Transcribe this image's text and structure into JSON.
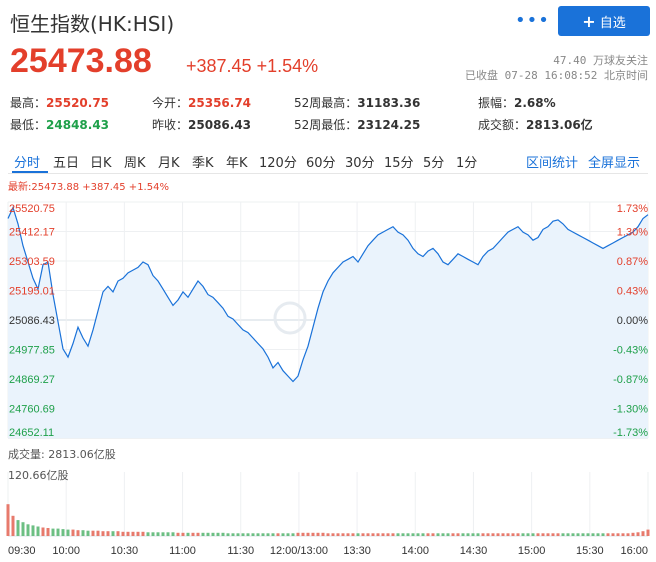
{
  "header": {
    "title": "恒生指数(HK:HSI)",
    "more_icon": "more-dots-icon",
    "add_button_label": "自选",
    "add_icon": "plus-icon"
  },
  "quote": {
    "price": "25473.88",
    "change": "+387.45 +1.54%",
    "followers": "47.40 万球友关注",
    "status": "已收盘 07-28 16:08:52 北京时间"
  },
  "stats": {
    "high_label": "最高：",
    "high_value": "25520.75",
    "low_label": "最低：",
    "low_value": "24848.43",
    "open_label": "今开：",
    "open_value": "25356.74",
    "prev_close_label": "昨收：",
    "prev_close_value": "25086.43",
    "w52_high_label": "52周最高：",
    "w52_high_value": "31183.36",
    "w52_low_label": "52周最低：",
    "w52_low_value": "23124.25",
    "amplitude_label": "振幅：",
    "amplitude_value": "2.68%",
    "turnover_label": "成交额：",
    "turnover_value": "2813.06亿"
  },
  "tabs": [
    "分时",
    "五日",
    "日K",
    "周K",
    "月K",
    "季K",
    "年K",
    "120分",
    "60分",
    "30分",
    "15分",
    "5分",
    "1分"
  ],
  "tab_links": {
    "range_stats": "区间统计",
    "fullscreen": "全屏显示"
  },
  "latest_line": "最新:25473.88 +387.45 +1.54%",
  "volume": {
    "label": "成交量: 2813.06亿股",
    "max_label": "120.66亿股"
  },
  "watermark": "雪球",
  "colors": {
    "up": "#e33f2b",
    "down": "#1fa04a",
    "line": "#1a72d9",
    "accent": "#1a72d9"
  },
  "chart_data": {
    "type": "area",
    "prev_close": 25086.43,
    "ylim": [
      24652.11,
      25520.75
    ],
    "y_ticks_left": [
      "25520.75",
      "25412.17",
      "25303.59",
      "25195.01",
      "25086.43",
      "24977.85",
      "24869.27",
      "24760.69",
      "24652.11"
    ],
    "y_ticks_right": [
      "1.73%",
      "1.30%",
      "0.87%",
      "0.43%",
      "0.00%",
      "-0.43%",
      "-0.87%",
      "-1.30%",
      "-1.73%"
    ],
    "x_ticks": [
      "09:30",
      "10:00",
      "10:30",
      "11:00",
      "11:30",
      "12:00/13:00",
      "13:30",
      "14:00",
      "14:30",
      "15:00",
      "15:30",
      "16:00"
    ],
    "series": [
      {
        "values": [
          25460,
          25500,
          25440,
          25360,
          25300,
          25240,
          25200,
          25290,
          25300,
          25180,
          25080,
          24980,
          24950,
          25000,
          25060,
          25020,
          24990,
          25050,
          25120,
          25190,
          25210,
          25190,
          25230,
          25240,
          25260,
          25270,
          25280,
          25300,
          25290,
          25250,
          25230,
          25200,
          25170,
          25140,
          25160,
          25190,
          25170,
          25200,
          25230,
          25210,
          25180,
          25170,
          25150,
          25130,
          25100,
          25090,
          25070,
          25050,
          25040,
          25020,
          25000,
          24980,
          24950,
          24910,
          24930,
          24900,
          24880,
          24860,
          24880,
          24940,
          24990,
          25060,
          25130,
          25190,
          25230,
          25260,
          25280,
          25300,
          25310,
          25320,
          25300,
          25330,
          25360,
          25380,
          25400,
          25410,
          25420,
          25430,
          25410,
          25400,
          25380,
          25350,
          25330,
          25320,
          25340,
          25350,
          25330,
          25300,
          25290,
          25310,
          25330,
          25320,
          25310,
          25300,
          25290,
          25320,
          25340,
          25350,
          25370,
          25390,
          25410,
          25420,
          25430,
          25410,
          25400,
          25380,
          25390,
          25420,
          25430,
          25450,
          25455,
          25440,
          25420,
          25410,
          25400,
          25390,
          25380,
          25370,
          25360,
          25350,
          25360,
          25370,
          25380,
          25390,
          25400,
          25410,
          25430,
          25460,
          25473.88
        ],
        "volume": [
          60,
          38,
          30,
          26,
          22,
          20,
          18,
          16,
          15,
          14,
          14,
          13,
          12,
          12,
          11,
          11,
          10,
          10,
          10,
          9,
          9,
          9,
          9,
          8,
          8,
          8,
          8,
          8,
          7,
          7,
          7,
          7,
          7,
          7,
          6,
          6,
          6,
          6,
          6,
          6,
          6,
          6,
          6,
          6,
          5,
          5,
          5,
          5,
          5,
          5,
          5,
          5,
          5,
          5,
          5,
          5,
          5,
          5,
          6,
          6,
          6,
          6,
          6,
          6,
          5,
          5,
          5,
          5,
          5,
          5,
          5,
          5,
          5,
          5,
          5,
          5,
          5,
          5,
          5,
          5,
          5,
          5,
          5,
          5,
          5,
          5,
          5,
          5,
          5,
          5,
          5,
          5,
          5,
          5,
          5,
          5,
          5,
          5,
          5,
          5,
          5,
          5,
          5,
          5,
          5,
          5,
          5,
          5,
          5,
          5,
          5,
          5,
          5,
          5,
          5,
          5,
          5,
          5,
          5,
          5,
          5,
          5,
          5,
          5,
          5,
          6,
          7,
          9,
          12
        ]
      }
    ],
    "volume_ylim": [
      0,
      120.66
    ]
  }
}
